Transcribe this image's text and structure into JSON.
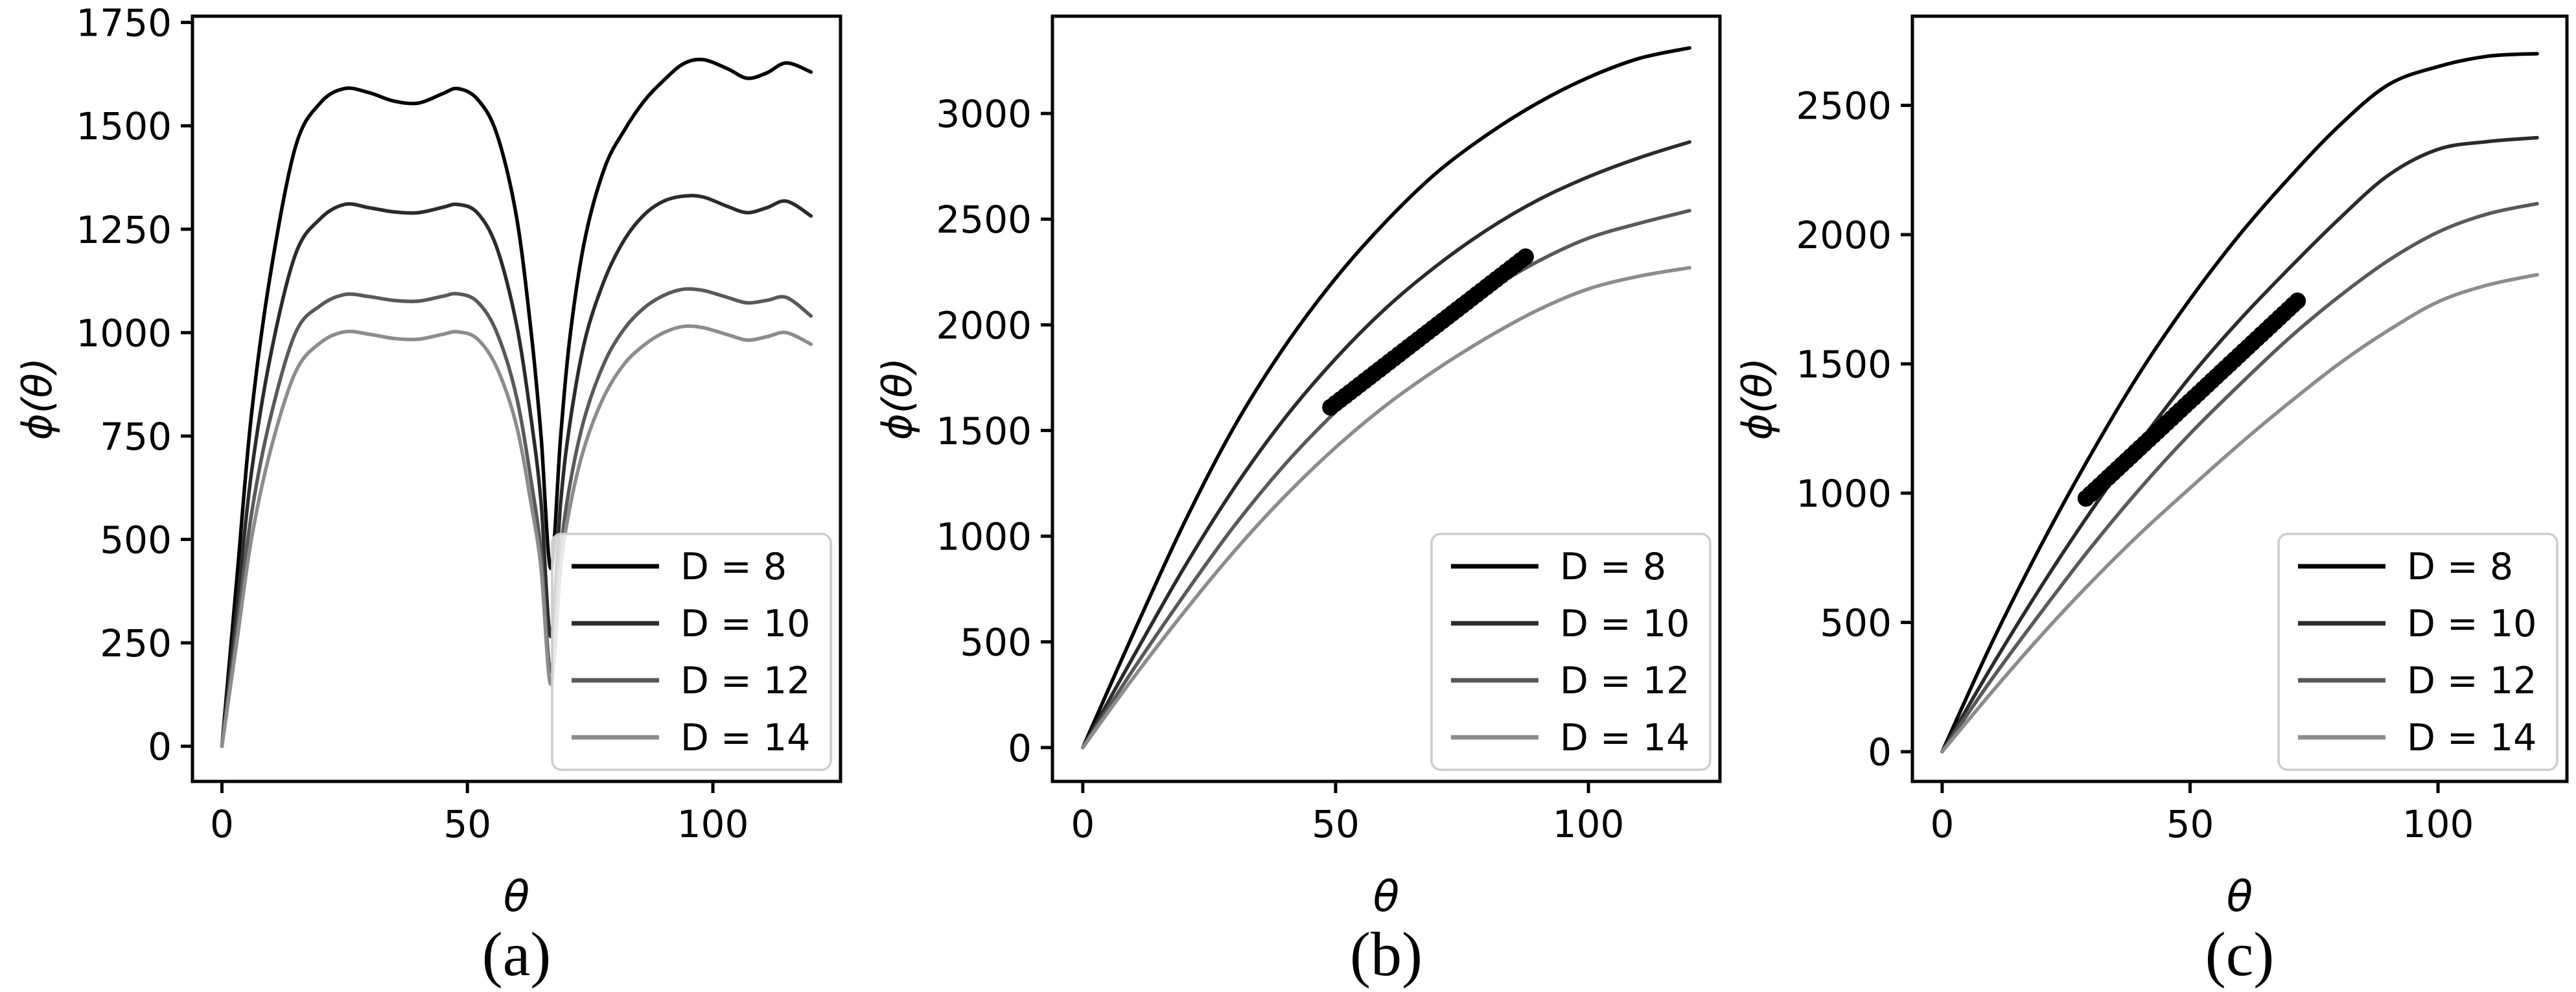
{
  "figure": {
    "background": "#ffffff",
    "series_colors": [
      "#000000",
      "#2b2b2b",
      "#595959",
      "#8c8c8c"
    ],
    "dotted_color": "#000000",
    "legend_border_color": "#cccccc",
    "legend_bg": "rgba(255,255,255,0.8)"
  },
  "chart_data": [
    {
      "type": "line",
      "panel_label": "(a)",
      "xlabel": "θ",
      "ylabel": "ϕ(θ)",
      "xlim": [
        -6,
        126
      ],
      "ylim": [
        -85,
        1765
      ],
      "xticks": [
        0,
        50,
        100
      ],
      "yticks": [
        0,
        250,
        500,
        750,
        1000,
        1250,
        1500,
        1750
      ],
      "grid": false,
      "legend_position": "lower right",
      "legend_entries": [
        "D = 8",
        "D = 10",
        "D = 12",
        "D = 14"
      ],
      "x": [
        0,
        3,
        6,
        10,
        15,
        20,
        25,
        30,
        35,
        40,
        45,
        48,
        52,
        56,
        60,
        63,
        65,
        67,
        69,
        71,
        74,
        78,
        82,
        86,
        90,
        94,
        98,
        103,
        107,
        111,
        115,
        120
      ],
      "series": [
        {
          "name": "D = 8",
          "values": [
            0,
            400,
            800,
            1150,
            1450,
            1555,
            1590,
            1580,
            1560,
            1555,
            1578,
            1590,
            1565,
            1480,
            1280,
            1000,
            750,
            430,
            750,
            1000,
            1230,
            1400,
            1490,
            1560,
            1610,
            1650,
            1660,
            1638,
            1615,
            1628,
            1652,
            1630
          ]
        },
        {
          "name": "D = 10",
          "values": [
            0,
            330,
            660,
            950,
            1190,
            1275,
            1310,
            1302,
            1292,
            1290,
            1303,
            1310,
            1290,
            1205,
            1020,
            790,
            590,
            265,
            590,
            790,
            985,
            1130,
            1225,
            1285,
            1318,
            1330,
            1328,
            1305,
            1290,
            1302,
            1318,
            1282
          ]
        },
        {
          "name": "D = 12",
          "values": [
            0,
            280,
            560,
            800,
            1000,
            1065,
            1092,
            1087,
            1078,
            1076,
            1088,
            1094,
            1075,
            1000,
            845,
            640,
            470,
            180,
            470,
            640,
            800,
            930,
            1010,
            1060,
            1090,
            1105,
            1102,
            1085,
            1072,
            1078,
            1085,
            1040
          ]
        },
        {
          "name": "D = 14",
          "values": [
            0,
            250,
            500,
            720,
            905,
            975,
            1002,
            996,
            986,
            984,
            996,
            1002,
            985,
            915,
            775,
            585,
            430,
            150,
            430,
            585,
            730,
            850,
            925,
            970,
            1000,
            1015,
            1012,
            995,
            982,
            990,
            1000,
            972
          ]
        }
      ],
      "dotted_segment": null
    },
    {
      "type": "line",
      "panel_label": "(b)",
      "xlabel": "θ",
      "ylabel": "ϕ(θ)",
      "xlim": [
        -6,
        126
      ],
      "ylim": [
        -160,
        3460
      ],
      "xticks": [
        0,
        50,
        100
      ],
      "yticks": [
        0,
        500,
        1000,
        1500,
        2000,
        2500,
        3000
      ],
      "grid": false,
      "legend_position": "lower right",
      "legend_entries": [
        "D = 8",
        "D = 10",
        "D = 12",
        "D = 14"
      ],
      "x": [
        0,
        10,
        20,
        30,
        40,
        50,
        60,
        70,
        80,
        90,
        100,
        110,
        120
      ],
      "series": [
        {
          "name": "D = 8",
          "values": [
            0,
            540,
            1060,
            1520,
            1900,
            2220,
            2490,
            2720,
            2900,
            3050,
            3170,
            3260,
            3310
          ]
        },
        {
          "name": "D = 10",
          "values": [
            0,
            430,
            850,
            1230,
            1560,
            1840,
            2080,
            2280,
            2450,
            2590,
            2700,
            2790,
            2865
          ]
        },
        {
          "name": "D = 12",
          "values": [
            0,
            370,
            720,
            1050,
            1340,
            1590,
            1810,
            2000,
            2160,
            2300,
            2410,
            2480,
            2540
          ]
        },
        {
          "name": "D = 14",
          "values": [
            0,
            330,
            640,
            930,
            1190,
            1420,
            1620,
            1790,
            1940,
            2070,
            2170,
            2230,
            2270
          ]
        }
      ],
      "dotted_segment": {
        "x": [
          49,
          88
        ],
        "y": [
          1610,
          2330
        ]
      }
    },
    {
      "type": "line",
      "panel_label": "(c)",
      "xlabel": "θ",
      "ylabel": "ϕ(θ)",
      "xlim": [
        -6,
        126
      ],
      "ylim": [
        -115,
        2845
      ],
      "xticks": [
        0,
        50,
        100
      ],
      "yticks": [
        0,
        500,
        1000,
        1500,
        2000,
        2500
      ],
      "grid": false,
      "legend_position": "lower right",
      "legend_entries": [
        "D = 8",
        "D = 10",
        "D = 12",
        "D = 14"
      ],
      "x": [
        0,
        10,
        20,
        30,
        40,
        50,
        60,
        70,
        80,
        90,
        100,
        110,
        120
      ],
      "series": [
        {
          "name": "D = 8",
          "values": [
            0,
            420,
            800,
            1150,
            1470,
            1750,
            2000,
            2220,
            2420,
            2580,
            2650,
            2690,
            2700
          ]
        },
        {
          "name": "D = 10",
          "values": [
            0,
            330,
            640,
            930,
            1200,
            1450,
            1670,
            1870,
            2060,
            2230,
            2330,
            2360,
            2375
          ]
        },
        {
          "name": "D = 12",
          "values": [
            0,
            280,
            540,
            790,
            1020,
            1230,
            1420,
            1600,
            1760,
            1900,
            2010,
            2080,
            2120
          ]
        },
        {
          "name": "D = 14",
          "values": [
            0,
            230,
            450,
            655,
            845,
            1020,
            1190,
            1350,
            1500,
            1630,
            1740,
            1805,
            1845
          ]
        }
      ],
      "dotted_segment": {
        "x": [
          29,
          72
        ],
        "y": [
          980,
          1750
        ]
      }
    }
  ]
}
